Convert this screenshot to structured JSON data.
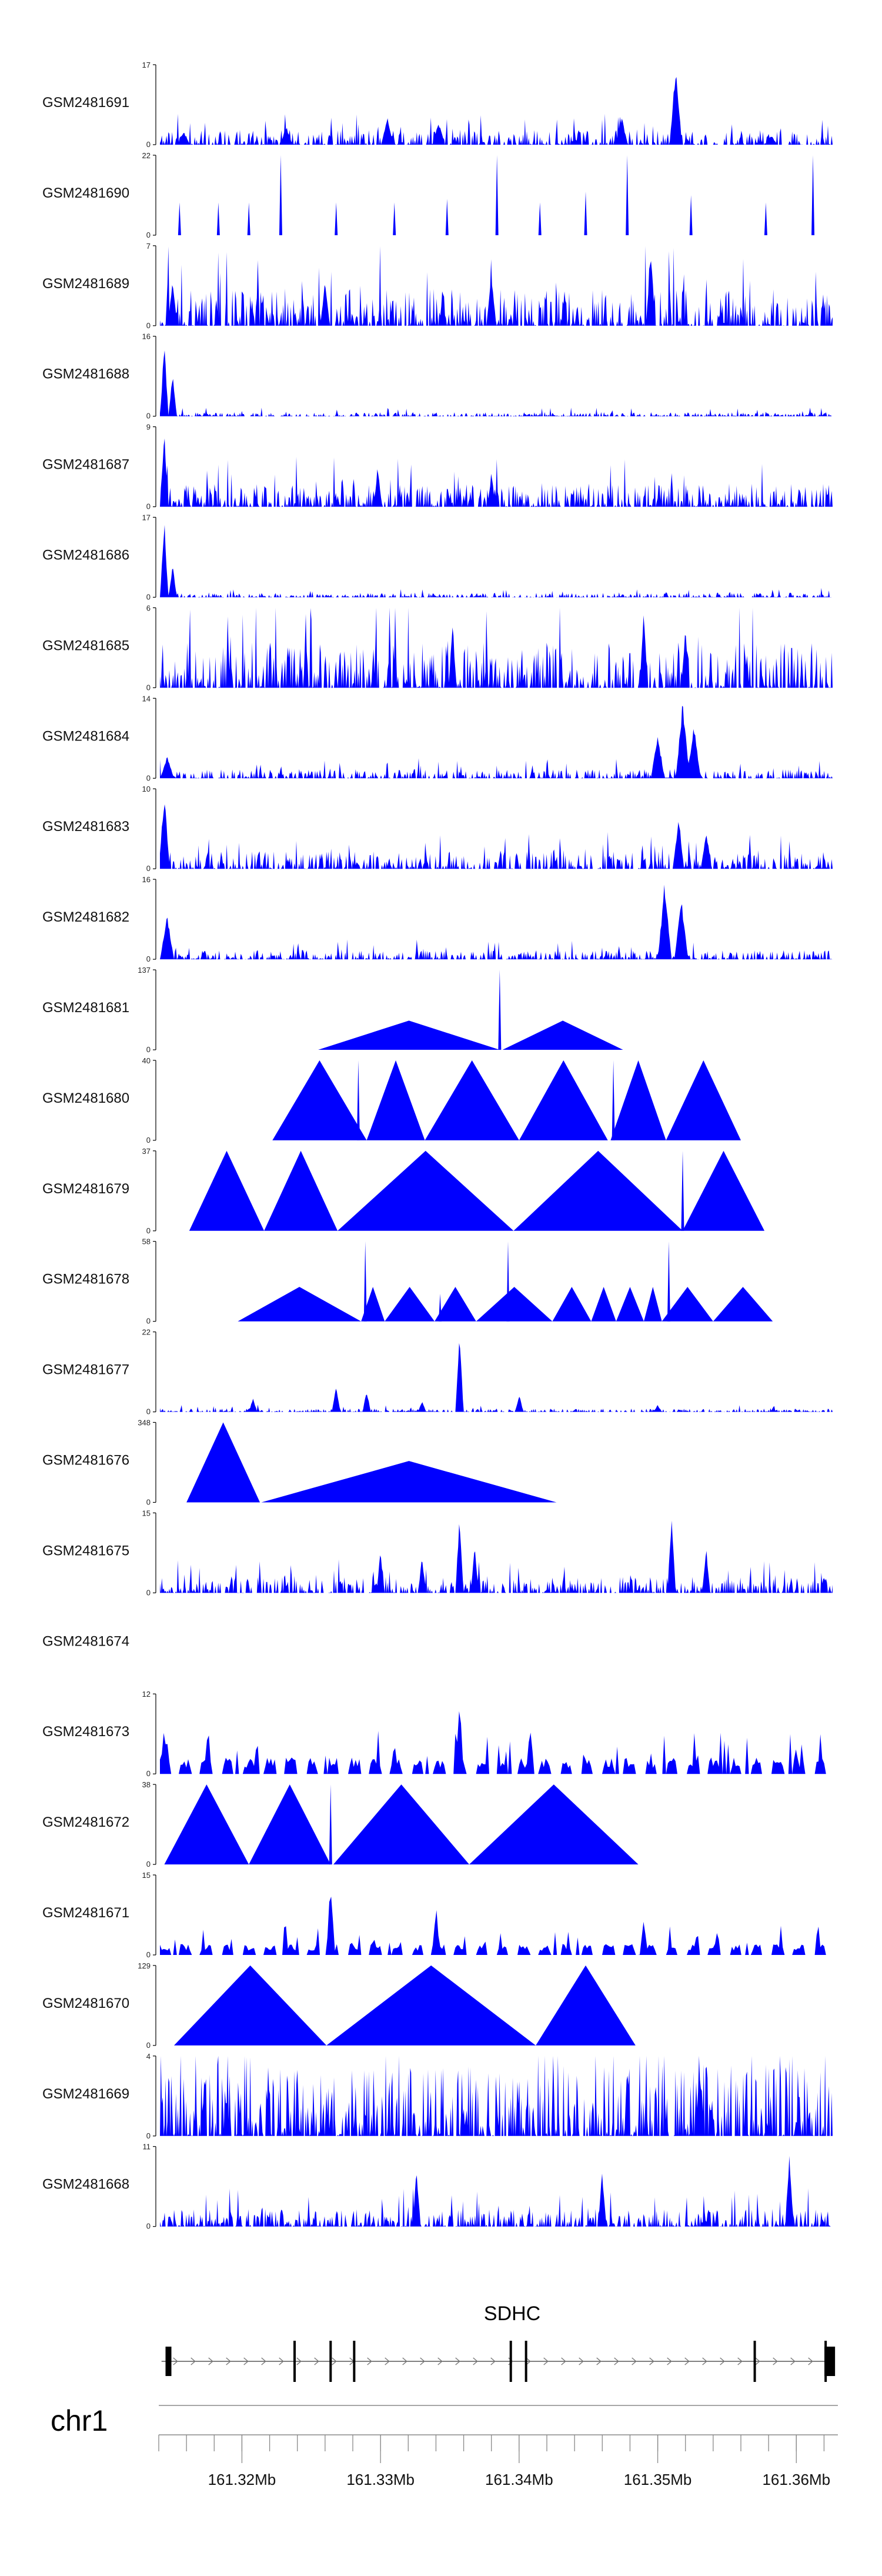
{
  "chart_data": {
    "type": "area",
    "title": "",
    "track_color": "#0000FF",
    "genome": {
      "chromosome": "chr1",
      "gene": "SDHC",
      "range_mb": [
        161.314,
        161.363
      ],
      "axis_ticks_mb": [
        161.32,
        161.33,
        161.34,
        161.35,
        161.36
      ],
      "axis_tick_labels": [
        "161.32Mb",
        "161.33Mb",
        "161.34Mb",
        "161.35Mb",
        "161.36Mb"
      ],
      "gene_start_mb": 161.3142,
      "gene_end_mb": 161.3625,
      "exons_mb": [
        161.3147,
        161.3238,
        161.3264,
        161.3281,
        161.3394,
        161.3405,
        161.357,
        161.3622
      ]
    },
    "tracks": [
      {
        "sample": "GSM2481691",
        "ymax": 17,
        "peaks": [
          [
            161.3158,
            3
          ],
          [
            161.3232,
            4
          ],
          [
            161.3305,
            6
          ],
          [
            161.3342,
            5
          ],
          [
            161.3474,
            6
          ],
          [
            161.3513,
            17
          ],
          [
            161.3582,
            2
          ]
        ],
        "noise": 3.2,
        "width": 0.00045
      },
      {
        "sample": "GSM2481690",
        "ymax": 22,
        "peaks": [
          [
            161.3155,
            9
          ],
          [
            161.3183,
            9
          ],
          [
            161.3205,
            9
          ],
          [
            161.3228,
            22
          ],
          [
            161.3268,
            9
          ],
          [
            161.331,
            9
          ],
          [
            161.3348,
            10
          ],
          [
            161.3384,
            22
          ],
          [
            161.3415,
            9
          ],
          [
            161.3448,
            12
          ],
          [
            161.3478,
            22
          ],
          [
            161.3524,
            11
          ],
          [
            161.3578,
            9
          ],
          [
            161.3612,
            22
          ]
        ],
        "noise": 0,
        "width": 0.0016
      },
      {
        "sample": "GSM2481689",
        "ymax": 7,
        "peaks": [
          [
            161.315,
            4
          ],
          [
            161.326,
            4
          ],
          [
            161.338,
            5
          ],
          [
            161.3495,
            7
          ]
        ],
        "noise": 3.2,
        "width": 0.00035
      },
      {
        "sample": "GSM2481688",
        "ymax": 16,
        "peaks": [
          [
            161.3144,
            16
          ],
          [
            161.315,
            9
          ]
        ],
        "noise": 0.8,
        "width": 0.0003
      },
      {
        "sample": "GSM2481687",
        "ymax": 9,
        "peaks": [
          [
            161.3144,
            9
          ],
          [
            161.3298,
            5
          ],
          [
            161.338,
            4
          ]
        ],
        "noise": 2.6,
        "width": 0.0003
      },
      {
        "sample": "GSM2481686",
        "ymax": 17,
        "peaks": [
          [
            161.3144,
            17
          ],
          [
            161.315,
            7
          ]
        ],
        "noise": 0.9,
        "width": 0.0003
      },
      {
        "sample": "GSM2481685",
        "ymax": 6,
        "peaks": [
          [
            161.3352,
            5
          ],
          [
            161.349,
            6
          ],
          [
            161.352,
            5
          ]
        ],
        "noise": 3.4,
        "width": 0.0003
      },
      {
        "sample": "GSM2481684",
        "ymax": 14,
        "peaks": [
          [
            161.3146,
            4
          ],
          [
            161.35,
            8
          ],
          [
            161.3518,
            14
          ],
          [
            161.3526,
            10
          ]
        ],
        "noise": 1.6,
        "width": 0.0005
      },
      {
        "sample": "GSM2481683",
        "ymax": 10,
        "peaks": [
          [
            161.3144,
            10
          ],
          [
            161.3515,
            7
          ],
          [
            161.3535,
            5
          ]
        ],
        "noise": 2.2,
        "width": 0.0004
      },
      {
        "sample": "GSM2481682",
        "ymax": 16,
        "peaks": [
          [
            161.3146,
            9
          ],
          [
            161.3505,
            16
          ],
          [
            161.3517,
            13
          ]
        ],
        "noise": 1.8,
        "width": 0.0005
      },
      {
        "sample": "GSM2481681",
        "ymax": 137,
        "peaks": [
          [
            161.3386,
            137
          ]
        ],
        "noise": 0,
        "width": 0,
        "triangles": [
          [
            161.3255,
            161.3386,
            50
          ],
          [
            161.3388,
            161.3475,
            50
          ]
        ]
      },
      {
        "sample": "GSM2481680",
        "ymax": 40,
        "peaks": [
          [
            161.3284,
            40
          ],
          [
            161.3468,
            40
          ]
        ],
        "noise": 0,
        "width": 0,
        "triangles": [
          [
            161.3222,
            161.329,
            40
          ],
          [
            161.329,
            161.3332,
            40
          ],
          [
            161.3332,
            161.34,
            40
          ],
          [
            161.34,
            161.3464,
            40
          ],
          [
            161.3466,
            161.3506,
            40
          ],
          [
            161.3506,
            161.356,
            40
          ]
        ]
      },
      {
        "sample": "GSM2481679",
        "ymax": 37,
        "peaks": [
          [
            161.3518,
            37
          ]
        ],
        "noise": 0,
        "width": 0,
        "triangles": [
          [
            161.3162,
            161.3216,
            37
          ],
          [
            161.3216,
            161.3269,
            37
          ],
          [
            161.3269,
            161.3396,
            37
          ],
          [
            161.3396,
            161.3518,
            37
          ],
          [
            161.3518,
            161.3577,
            37
          ]
        ]
      },
      {
        "sample": "GSM2481678",
        "ymax": 58,
        "peaks": [
          [
            161.3289,
            58
          ],
          [
            161.3343,
            20
          ],
          [
            161.3392,
            58
          ],
          [
            161.3508,
            58
          ]
        ],
        "noise": 0,
        "width": 0,
        "triangles": [
          [
            161.3197,
            161.3286,
            25
          ],
          [
            161.3286,
            161.3303,
            25
          ],
          [
            161.3303,
            161.3339,
            25
          ],
          [
            161.3339,
            161.3369,
            25
          ],
          [
            161.3369,
            161.3424,
            25
          ],
          [
            161.3424,
            161.3452,
            25
          ],
          [
            161.3452,
            161.347,
            25
          ],
          [
            161.347,
            161.349,
            25
          ],
          [
            161.349,
            161.3503,
            25
          ],
          [
            161.3503,
            161.354,
            25
          ],
          [
            161.354,
            161.3583,
            25
          ]
        ]
      },
      {
        "sample": "GSM2481677",
        "ymax": 22,
        "peaks": [
          [
            161.3208,
            4
          ],
          [
            161.3268,
            8
          ],
          [
            161.329,
            6
          ],
          [
            161.333,
            3
          ],
          [
            161.3357,
            22
          ],
          [
            161.34,
            5
          ],
          [
            161.35,
            2
          ]
        ],
        "noise": 0.9,
        "width": 0.0003
      },
      {
        "sample": "GSM2481676",
        "ymax": 348,
        "peaks": [],
        "noise": 0,
        "width": 0,
        "triangles": [
          [
            161.316,
            161.3213,
            348
          ],
          [
            161.3214,
            161.3427,
            180
          ]
        ]
      },
      {
        "sample": "GSM2481675",
        "ymax": 15,
        "peaks": [
          [
            161.33,
            8
          ],
          [
            161.333,
            7
          ],
          [
            161.3357,
            15
          ],
          [
            161.3368,
            9
          ],
          [
            161.351,
            15
          ],
          [
            161.3535,
            9
          ]
        ],
        "noise": 3.0,
        "width": 0.0003
      },
      {
        "sample": "GSM2481674",
        "ymax": null,
        "peaks": [],
        "noise": 0,
        "width": 0
      },
      {
        "sample": "GSM2481673",
        "ymax": 12,
        "peaks": [
          [
            161.3144,
            8
          ],
          [
            161.331,
            5
          ],
          [
            161.3357,
            12
          ],
          [
            161.3408,
            8
          ]
        ],
        "noise": 2.6,
        "width": 0.0003,
        "sparse": true
      },
      {
        "sample": "GSM2481672",
        "ymax": 38,
        "peaks": [
          [
            161.3264,
            38
          ]
        ],
        "noise": 0,
        "width": 0,
        "triangles": [
          [
            161.3144,
            161.3205,
            38
          ],
          [
            161.3205,
            161.3264,
            38
          ],
          [
            161.3266,
            161.3364,
            38
          ],
          [
            161.3364,
            161.3486,
            38
          ]
        ]
      },
      {
        "sample": "GSM2481671",
        "ymax": 15,
        "peaks": [
          [
            161.3264,
            15
          ],
          [
            161.334,
            10
          ],
          [
            161.349,
            7
          ]
        ],
        "noise": 2.2,
        "width": 0.0003,
        "sparse": true
      },
      {
        "sample": "GSM2481670",
        "ymax": 129,
        "peaks": [],
        "noise": 0,
        "width": 0,
        "triangles": [
          [
            161.3151,
            161.3261,
            129
          ],
          [
            161.3261,
            161.3412,
            129
          ],
          [
            161.3412,
            161.3484,
            129
          ]
        ]
      },
      {
        "sample": "GSM2481669",
        "ymax": 4,
        "peaks": [],
        "noise": 3.6,
        "width": 0.0002
      },
      {
        "sample": "GSM2481668",
        "ymax": 11,
        "peaks": [
          [
            161.3326,
            8
          ],
          [
            161.346,
            8
          ],
          [
            161.3595,
            11
          ]
        ],
        "noise": 2.4,
        "width": 0.0003
      }
    ]
  }
}
